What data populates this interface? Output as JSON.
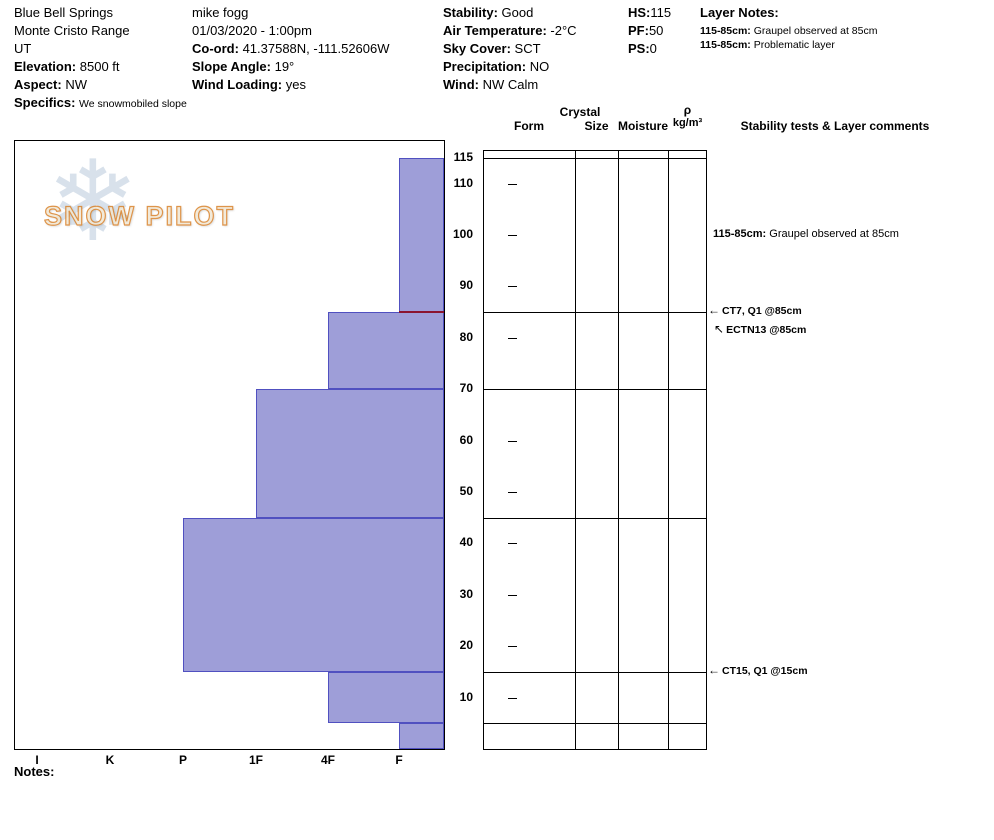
{
  "header": {
    "location": {
      "name": "Blue Bell Springs",
      "range": "Monte Cristo Range",
      "state": "UT",
      "elevation_label": "Elevation:",
      "elevation": "8500 ft",
      "aspect_label": "Aspect:",
      "aspect": "NW",
      "specifics_label": "Specifics:",
      "specifics": "We snowmobiled slope"
    },
    "observer": {
      "name": "mike fogg",
      "datetime": "01/03/2020 - 1:00pm",
      "coord_label": "Co-ord:",
      "coord": "41.37588N, -111.52606W",
      "slope_angle_label": "Slope Angle:",
      "slope_angle": "19°",
      "wind_loading_label": "Wind Loading:",
      "wind_loading": "yes"
    },
    "conditions": {
      "stability_label": "Stability:",
      "stability": "Good",
      "air_temp_label": "Air Temperature:",
      "air_temp": "-2°C",
      "sky_label": "Sky Cover:",
      "sky": "SCT",
      "precip_label": "Precipitation:",
      "precip": "NO",
      "wind_label": "Wind:",
      "wind": "NW Calm"
    },
    "totals": {
      "hs_label": "HS:",
      "hs": "115",
      "pf_label": "PF:",
      "pf": "50",
      "ps_label": "PS:",
      "ps": "0"
    },
    "layer_notes": {
      "title": "Layer Notes:",
      "items": [
        {
          "range": "115-85cm:",
          "text": "Graupel observed at 85cm"
        },
        {
          "range": "115-85cm:",
          "text": "Problematic layer"
        }
      ]
    }
  },
  "profile_table": {
    "crystal": "Crystal",
    "form": "Form",
    "size": "Size",
    "moisture": "Moisture",
    "rho": "ρ",
    "rho_units": "kg/m³",
    "comments_header": "Stability tests & Layer comments"
  },
  "watermark": {
    "snowflake_glyph": "❄",
    "text": "SNOW PILOT"
  },
  "notes_label": "Notes:",
  "chart_data": {
    "type": "bar",
    "subtype": "snow-hardness-profile",
    "title": "Snow pit hardness profile",
    "depth_unit": "cm",
    "depth_max": 115,
    "depth_ticks": [
      115,
      110,
      100,
      90,
      80,
      70,
      60,
      50,
      40,
      30,
      20,
      10
    ],
    "hardness_scale": [
      "I",
      "K",
      "P",
      "1F",
      "4F",
      "F"
    ],
    "layers": [
      {
        "top_cm": 115,
        "bottom_cm": 85,
        "hardness": "F"
      },
      {
        "top_cm": 85,
        "bottom_cm": 70,
        "hardness": "4F"
      },
      {
        "top_cm": 70,
        "bottom_cm": 45,
        "hardness": "1F"
      },
      {
        "top_cm": 45,
        "bottom_cm": 15,
        "hardness": "P"
      },
      {
        "top_cm": 15,
        "bottom_cm": 5,
        "hardness": "4F"
      },
      {
        "top_cm": 5,
        "bottom_cm": 0,
        "hardness": "F"
      }
    ],
    "layer_boundaries": [
      115,
      85,
      70,
      45,
      15,
      5
    ],
    "problem_line": {
      "depth_cm": 85,
      "hardness_from": "F",
      "color": "#8b1430"
    },
    "bar_fill": "#9e9ed8",
    "bar_border": "#5050c0",
    "test_annotations": [
      {
        "depth_cm": 85,
        "text": "CT7, Q1 @85cm",
        "arrow": "left"
      },
      {
        "depth_cm": 85,
        "text": "ECTN13 @85cm",
        "arrow": "upleft"
      },
      {
        "depth_cm": 15,
        "text": "CT15, Q1 @15cm",
        "arrow": "left"
      }
    ],
    "layer_comments": [
      {
        "at_depth_cm": 100,
        "range": "115-85cm:",
        "text": "Graupel observed at 85cm"
      }
    ]
  }
}
